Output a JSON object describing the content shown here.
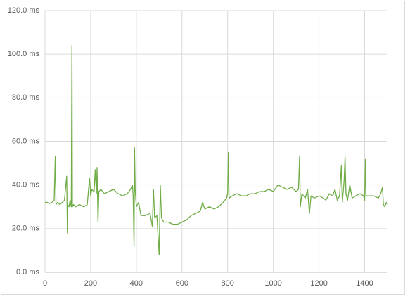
{
  "chart_data": {
    "type": "line",
    "x": [
      0,
      10,
      20,
      30,
      40,
      45,
      48,
      55,
      65,
      75,
      85,
      95,
      98,
      100,
      105,
      110,
      115,
      118,
      120,
      125,
      135,
      150,
      170,
      185,
      195,
      200,
      205,
      215,
      220,
      225,
      228,
      232,
      236,
      245,
      260,
      280,
      300,
      320,
      340,
      360,
      375,
      383,
      386,
      390,
      392,
      395,
      400,
      410,
      420,
      440,
      460,
      470,
      475,
      480,
      490,
      500,
      505,
      510,
      520,
      540,
      560,
      580,
      600,
      620,
      640,
      660,
      680,
      690,
      700,
      720,
      740,
      760,
      780,
      795,
      800,
      803,
      806,
      820,
      840,
      860,
      880,
      900,
      920,
      940,
      960,
      980,
      1000,
      1020,
      1040,
      1060,
      1080,
      1100,
      1110,
      1115,
      1118,
      1125,
      1140,
      1150,
      1158,
      1165,
      1180,
      1200,
      1220,
      1230,
      1245,
      1260,
      1270,
      1280,
      1290,
      1298,
      1302,
      1310,
      1314,
      1318,
      1325,
      1335,
      1345,
      1360,
      1380,
      1395,
      1400,
      1403,
      1406,
      1420,
      1440,
      1460,
      1470,
      1478,
      1482,
      1488,
      1495,
      1500
    ],
    "series": [
      {
        "color": "#70ad47",
        "values": [
          32,
          32,
          31.5,
          32,
          33,
          53,
          31,
          32,
          31,
          32,
          33,
          44,
          18,
          31,
          30,
          33,
          30,
          104,
          30,
          31,
          30,
          31,
          30,
          31,
          43,
          35,
          38,
          37,
          47,
          36,
          48,
          23,
          37,
          38,
          36,
          37,
          38,
          36,
          35,
          36,
          38,
          40,
          35,
          12,
          57,
          38,
          30,
          32,
          26,
          26,
          27,
          21,
          38,
          25,
          26,
          8,
          40,
          25,
          23,
          23,
          22,
          22,
          23,
          24,
          26,
          27,
          28,
          32,
          29,
          30,
          29,
          30,
          32,
          34,
          36,
          55,
          34,
          35,
          36,
          35,
          35,
          36,
          36,
          37,
          37,
          38,
          37,
          40,
          39,
          38,
          39,
          37,
          38,
          53,
          30,
          36,
          34,
          38,
          27,
          35,
          34,
          35,
          34,
          33,
          36,
          35,
          38,
          33,
          35,
          49,
          32,
          42,
          53,
          36,
          33,
          40,
          34,
          35,
          36,
          35,
          33,
          52,
          35,
          35,
          35,
          34,
          36,
          39,
          31,
          30,
          32,
          31
        ]
      }
    ],
    "xlim": [
      0,
      1500
    ],
    "xticks": [
      0,
      200,
      400,
      600,
      800,
      1000,
      1200,
      1400
    ],
    "ylim": [
      0,
      120
    ],
    "yticks": [
      {
        "value": 0,
        "label": "0.0 ms"
      },
      {
        "value": 20,
        "label": "20.0 ms"
      },
      {
        "value": 40,
        "label": "40.0 ms"
      },
      {
        "value": 60,
        "label": "60.0 ms"
      },
      {
        "value": 80,
        "label": "80.0 ms"
      },
      {
        "value": 100,
        "label": "100.0 ms"
      },
      {
        "value": 120,
        "label": "120.0 ms"
      }
    ],
    "grid": true
  }
}
